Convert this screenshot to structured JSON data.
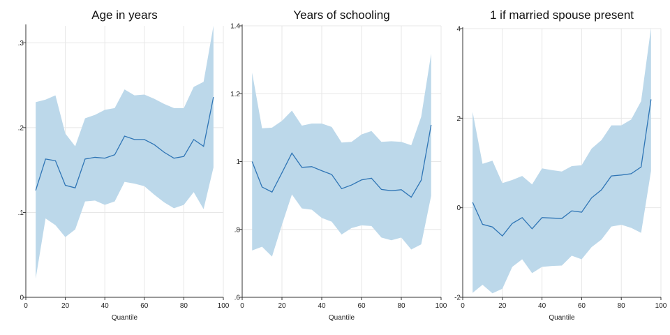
{
  "chart_data": [
    {
      "type": "line",
      "title": "Age in years",
      "xlabel": "Quantile",
      "ylabel": "",
      "xlim": [
        0,
        100
      ],
      "ylim": [
        0,
        0.32
      ],
      "x_ticks": [
        0,
        20,
        40,
        60,
        80,
        100
      ],
      "x_tick_labels": [
        "0",
        "20",
        "40",
        "60",
        "80",
        "100"
      ],
      "y_ticks": [
        0,
        0.1,
        0.2,
        0.3
      ],
      "y_tick_labels": [
        "0",
        ".1",
        ".2",
        ".3"
      ],
      "grid": true,
      "colors": {
        "line": "#2f75b5",
        "band": "#bcd8ea"
      },
      "x": [
        5,
        10,
        15,
        20,
        25,
        30,
        35,
        40,
        45,
        50,
        55,
        60,
        65,
        70,
        75,
        80,
        85,
        90,
        95
      ],
      "estimate": [
        0.126,
        0.163,
        0.161,
        0.132,
        0.129,
        0.163,
        0.165,
        0.164,
        0.168,
        0.19,
        0.186,
        0.186,
        0.18,
        0.171,
        0.164,
        0.166,
        0.186,
        0.178,
        0.236
      ],
      "ci_upper": [
        0.23,
        0.233,
        0.238,
        0.193,
        0.178,
        0.211,
        0.215,
        0.221,
        0.223,
        0.245,
        0.238,
        0.239,
        0.234,
        0.228,
        0.223,
        0.223,
        0.248,
        0.254,
        0.32
      ],
      "ci_lower": [
        0.022,
        0.093,
        0.085,
        0.071,
        0.08,
        0.113,
        0.114,
        0.109,
        0.113,
        0.136,
        0.134,
        0.131,
        0.121,
        0.112,
        0.105,
        0.109,
        0.124,
        0.104,
        0.153
      ]
    },
    {
      "type": "line",
      "title": "Years of schooling",
      "xlabel": "Quantile",
      "ylabel": "",
      "xlim": [
        0,
        100
      ],
      "ylim": [
        0.6,
        1.4
      ],
      "x_ticks": [
        0,
        20,
        40,
        60,
        80,
        100
      ],
      "x_tick_labels": [
        "0",
        "20",
        "40",
        "60",
        "80",
        "100"
      ],
      "y_ticks": [
        0.6,
        0.8,
        1.0,
        1.2,
        1.4
      ],
      "y_tick_labels": [
        ".6",
        ".8",
        "1",
        "1.2",
        "1.4"
      ],
      "grid": true,
      "colors": {
        "line": "#2f75b5",
        "band": "#bcd8ea"
      },
      "x": [
        5,
        10,
        15,
        20,
        25,
        30,
        35,
        40,
        45,
        50,
        55,
        60,
        65,
        70,
        75,
        80,
        85,
        90,
        95
      ],
      "estimate": [
        1.0,
        0.925,
        0.91,
        0.967,
        1.025,
        0.983,
        0.985,
        0.973,
        0.962,
        0.92,
        0.931,
        0.946,
        0.951,
        0.918,
        0.914,
        0.917,
        0.895,
        0.945,
        1.108
      ],
      "ci_upper": [
        1.262,
        1.098,
        1.1,
        1.12,
        1.15,
        1.106,
        1.112,
        1.112,
        1.102,
        1.056,
        1.058,
        1.08,
        1.09,
        1.058,
        1.06,
        1.058,
        1.048,
        1.132,
        1.318
      ],
      "ci_lower": [
        0.738,
        0.749,
        0.72,
        0.814,
        0.903,
        0.862,
        0.858,
        0.834,
        0.823,
        0.785,
        0.804,
        0.812,
        0.81,
        0.776,
        0.768,
        0.776,
        0.741,
        0.756,
        0.899
      ]
    },
    {
      "type": "line",
      "title": "1 if married spouse present",
      "xlabel": "Quantile",
      "ylabel": "",
      "xlim": [
        0,
        100
      ],
      "ylim": [
        -2,
        4
      ],
      "x_ticks": [
        0,
        20,
        40,
        60,
        80,
        100
      ],
      "x_tick_labels": [
        "0",
        "20",
        "40",
        "60",
        "80",
        "100"
      ],
      "y_ticks": [
        -2,
        0,
        2,
        4
      ],
      "y_tick_labels": [
        "-2",
        "0",
        "2",
        "4"
      ],
      "grid": true,
      "colors": {
        "line": "#2f75b5",
        "band": "#bcd8ea"
      },
      "x": [
        5,
        10,
        15,
        20,
        25,
        30,
        35,
        40,
        45,
        50,
        55,
        60,
        65,
        70,
        75,
        80,
        85,
        90,
        95
      ],
      "estimate": [
        0.12,
        -0.37,
        -0.43,
        -0.63,
        -0.35,
        -0.22,
        -0.47,
        -0.22,
        -0.23,
        -0.24,
        -0.07,
        -0.1,
        0.22,
        0.4,
        0.71,
        0.73,
        0.76,
        0.91,
        2.42
      ],
      "ci_upper": [
        2.14,
        0.98,
        1.05,
        0.55,
        0.62,
        0.71,
        0.52,
        0.88,
        0.84,
        0.81,
        0.93,
        0.95,
        1.32,
        1.51,
        1.84,
        1.84,
        1.97,
        2.38,
        4.02
      ],
      "ci_lower": [
        -1.9,
        -1.72,
        -1.91,
        -1.81,
        -1.32,
        -1.15,
        -1.46,
        -1.32,
        -1.3,
        -1.29,
        -1.07,
        -1.15,
        -0.88,
        -0.71,
        -0.42,
        -0.38,
        -0.45,
        -0.56,
        0.82
      ]
    }
  ]
}
